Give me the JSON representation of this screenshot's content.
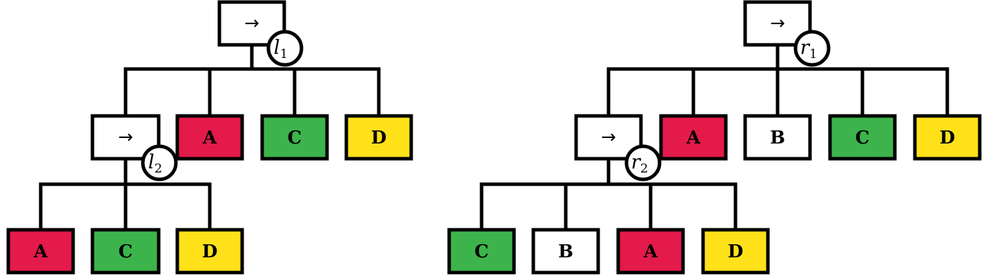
{
  "colors": {
    "A": "#E31A4A",
    "B": "#FFFFFF",
    "C": "#3CB44B",
    "D": "#FFE119",
    "op": "#FFFFFF"
  },
  "trees": [
    {
      "root": {
        "symbol": "→",
        "tag": {
          "letter": "l",
          "index": "1"
        },
        "children": [
          {
            "symbol": "→",
            "tag": {
              "letter": "l",
              "index": "2"
            },
            "children": [
              {
                "label": "A"
              },
              {
                "label": "C"
              },
              {
                "label": "D"
              }
            ]
          },
          {
            "label": "A"
          },
          {
            "label": "C"
          },
          {
            "label": "D"
          }
        ]
      }
    },
    {
      "root": {
        "symbol": "→",
        "tag": {
          "letter": "r",
          "index": "1"
        },
        "children": [
          {
            "symbol": "→",
            "tag": {
              "letter": "r",
              "index": "2"
            },
            "children": [
              {
                "label": "C"
              },
              {
                "label": "B"
              },
              {
                "label": "A"
              },
              {
                "label": "D"
              }
            ]
          },
          {
            "label": "A"
          },
          {
            "label": "B"
          },
          {
            "label": "C"
          },
          {
            "label": "D"
          }
        ]
      }
    }
  ]
}
